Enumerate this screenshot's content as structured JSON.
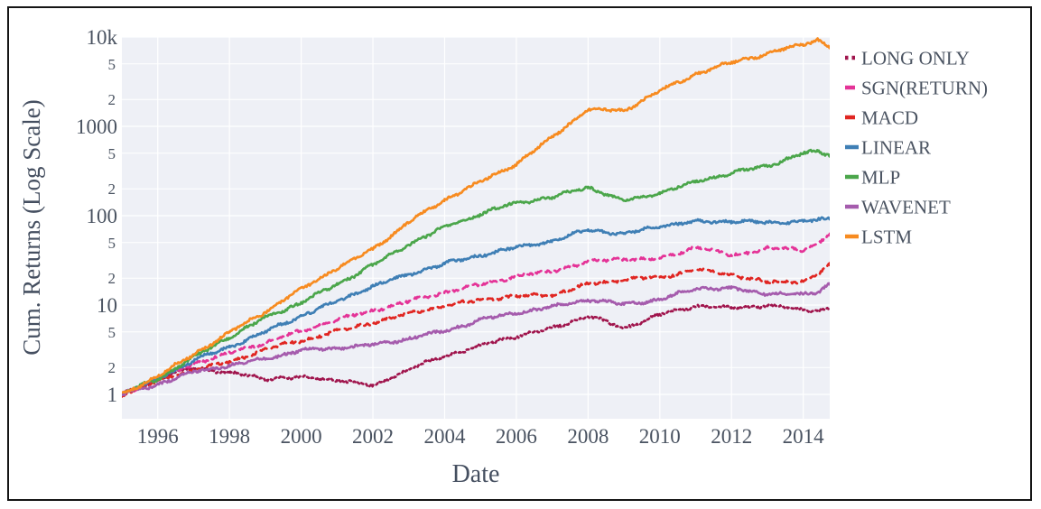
{
  "figure": {
    "background_color": "#ffffff",
    "plot_bg_color": "#eef0f6",
    "grid_color": "#ffffff",
    "text_color": "#4a5361",
    "frame_color": "#151515"
  },
  "chart_data": {
    "type": "line",
    "title": "",
    "xlabel": "Date",
    "ylabel": "Cum. Returns (Log Scale)",
    "y_scale": "log",
    "ylim": [
      1,
      10000
    ],
    "xlim": [
      1995,
      2014.75
    ],
    "grid": true,
    "legend_position": "right",
    "x_ticks": [
      {
        "value": 1996,
        "label": "1996"
      },
      {
        "value": 1998,
        "label": "1998"
      },
      {
        "value": 2000,
        "label": "2000"
      },
      {
        "value": 2002,
        "label": "2002"
      },
      {
        "value": 2004,
        "label": "2004"
      },
      {
        "value": 2006,
        "label": "2006"
      },
      {
        "value": 2008,
        "label": "2008"
      },
      {
        "value": 2010,
        "label": "2010"
      },
      {
        "value": 2012,
        "label": "2012"
      },
      {
        "value": 2014,
        "label": "2014"
      }
    ],
    "y_major_ticks": [
      {
        "value": 1,
        "label": "1"
      },
      {
        "value": 10,
        "label": "10"
      },
      {
        "value": 100,
        "label": "100"
      },
      {
        "value": 1000,
        "label": "1000"
      },
      {
        "value": 10000,
        "label": "10k"
      }
    ],
    "y_minor_ticks": [
      {
        "value": 2,
        "label": "2"
      },
      {
        "value": 5,
        "label": "5"
      },
      {
        "value": 20,
        "label": "2"
      },
      {
        "value": 50,
        "label": "5"
      },
      {
        "value": 200,
        "label": "2"
      },
      {
        "value": 500,
        "label": "5"
      },
      {
        "value": 2000,
        "label": "2"
      },
      {
        "value": 5000,
        "label": "5"
      }
    ],
    "x": [
      1995,
      1996,
      1997,
      1998,
      1999,
      2000,
      2001,
      2002,
      2003,
      2004,
      2005,
      2006,
      2007,
      2008,
      2009,
      2010,
      2011,
      2012,
      2013,
      2014,
      2014.4,
      2014.74
    ],
    "series": [
      {
        "name": "LONG ONLY",
        "color": "#a0154d",
        "dash": "dotted",
        "values": [
          1.0,
          1.5,
          2.0,
          1.75,
          1.5,
          1.55,
          1.45,
          1.25,
          1.9,
          2.7,
          3.5,
          4.5,
          5.5,
          7.6,
          5.5,
          7.8,
          9.8,
          9.1,
          10.0,
          8.7,
          8.8,
          9.2
        ]
      },
      {
        "name": "SGN(RETURN)",
        "color": "#e43397",
        "dash": "dashed",
        "values": [
          1.0,
          1.5,
          2.2,
          2.9,
          3.8,
          5.1,
          6.8,
          8.7,
          11.0,
          13.9,
          17.0,
          21.0,
          24.0,
          30.5,
          33.0,
          32.7,
          45.0,
          36.0,
          43.0,
          42.0,
          48.0,
          63.0
        ]
      },
      {
        "name": "MACD",
        "color": "#e02622",
        "dash": "dashed",
        "values": [
          1.0,
          1.4,
          1.9,
          2.3,
          3.2,
          4.0,
          5.1,
          6.4,
          8.0,
          9.8,
          11.5,
          12.5,
          13.0,
          17.1,
          19.3,
          20.5,
          24.8,
          22.0,
          18.0,
          18.5,
          22.0,
          28.0
        ]
      },
      {
        "name": "LINEAR",
        "color": "#3f7fb5",
        "dash": "solid",
        "values": [
          1.0,
          1.5,
          2.4,
          3.4,
          5.0,
          7.6,
          11.0,
          16.3,
          22.0,
          29.0,
          36.0,
          44.0,
          52.0,
          70.0,
          62.0,
          77.0,
          85.0,
          87.0,
          83.0,
          87.0,
          88.0,
          93.0
        ]
      },
      {
        "name": "MLP",
        "color": "#4ba64b",
        "dash": "solid",
        "values": [
          1.0,
          1.5,
          2.6,
          4.4,
          7.2,
          10.7,
          17.0,
          28.0,
          48.0,
          74.0,
          105.0,
          140.0,
          160.0,
          210.0,
          145.0,
          180.0,
          240.0,
          300.0,
          360.0,
          500.0,
          520.0,
          480.0
        ]
      },
      {
        "name": "WAVENET",
        "color": "#a55cad",
        "dash": "solid",
        "values": [
          1.0,
          1.3,
          1.8,
          2.1,
          2.5,
          3.1,
          3.3,
          3.6,
          4.2,
          5.1,
          6.8,
          8.2,
          9.5,
          11.5,
          10.2,
          11.5,
          15.5,
          15.2,
          13.5,
          13.0,
          14.0,
          17.5
        ]
      },
      {
        "name": "LSTM",
        "color": "#f78b20",
        "dash": "solid",
        "values": [
          1.0,
          1.6,
          2.8,
          4.9,
          8.5,
          15.0,
          26.0,
          42.0,
          85.0,
          150.0,
          240.0,
          380.0,
          760.0,
          1550.0,
          1500.0,
          2500.0,
          3850.0,
          5200.0,
          6500.0,
          8300.0,
          9400.0,
          7800.0
        ]
      }
    ]
  }
}
